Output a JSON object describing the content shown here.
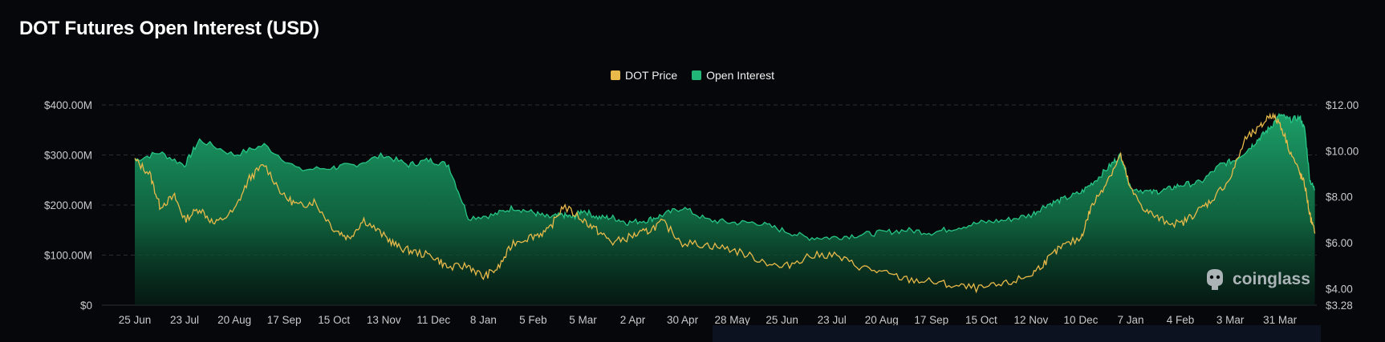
{
  "title": "DOT Futures Open Interest (USD)",
  "watermark": "coinglass",
  "colors": {
    "price": "#e9b949",
    "oi_line": "#27c585",
    "oi_top": "#1c9e68",
    "background": "#05070b"
  },
  "chart_data": {
    "type": "area",
    "title": "DOT Futures Open Interest (USD)",
    "legend_position": "top-center",
    "grid": true,
    "x_ticks": [
      "25 Jun",
      "23 Jul",
      "20 Aug",
      "17 Sep",
      "15 Oct",
      "13 Nov",
      "11 Dec",
      "8 Jan",
      "5 Feb",
      "5 Mar",
      "2 Apr",
      "30 Apr",
      "28 May",
      "25 Jun",
      "23 Jul",
      "20 Aug",
      "17 Sep",
      "15 Oct",
      "12 Nov",
      "10 Dec",
      "7 Jan",
      "4 Feb",
      "3 Mar",
      "31 Mar"
    ],
    "y_left": {
      "ticks": [
        "$0",
        "$100.00M",
        "$200.00M",
        "$300.00M",
        "$400.00M"
      ],
      "values": [
        0,
        100,
        200,
        300,
        400
      ],
      "range": [
        0,
        400
      ],
      "unit": "USD millions"
    },
    "y_right": {
      "ticks": [
        "$3.28",
        "$4.00",
        "$6.00",
        "$8.00",
        "$10.00",
        "$12.00"
      ],
      "values": [
        3.28,
        4,
        6,
        8,
        10,
        12
      ],
      "range": [
        3.28,
        12
      ],
      "unit": "USD"
    },
    "series": [
      {
        "name": "Open Interest",
        "axis": "left",
        "x": [
          0,
          0.5,
          1,
          1.3,
          2,
          2.6,
          3.3,
          4,
          4.4,
          5,
          5.5,
          5.9,
          6.3,
          6.7,
          7.2,
          7.6,
          8,
          8.3,
          8.6,
          8.8,
          9,
          9.3,
          9.6,
          9.9,
          10.3,
          10.6,
          11,
          11.5,
          12,
          12.5,
          13,
          13.5,
          14,
          14.5,
          15,
          15.5,
          16,
          16.5,
          17,
          17.5,
          18,
          18.3,
          18.6,
          19,
          19.3,
          19.6,
          19.8,
          20,
          20.4,
          20.7,
          21,
          21.4,
          21.8,
          22.1,
          22.4,
          22.6,
          22.8,
          23,
          23.2,
          23.4,
          23.5,
          23.6,
          23.7
        ],
        "values": [
          290,
          305,
          280,
          330,
          300,
          320,
          270,
          275,
          280,
          300,
          280,
          290,
          280,
          175,
          180,
          195,
          185,
          175,
          180,
          175,
          190,
          175,
          175,
          165,
          170,
          180,
          195,
          170,
          165,
          165,
          150,
          135,
          135,
          140,
          145,
          150,
          145,
          155,
          165,
          170,
          180,
          200,
          210,
          225,
          250,
          280,
          300,
          235,
          225,
          230,
          240,
          245,
          280,
          290,
          315,
          335,
          355,
          380,
          370,
          375,
          350,
          250,
          230
        ]
      },
      {
        "name": "DOT Price",
        "axis": "right",
        "x": [
          0,
          0.3,
          0.5,
          0.8,
          1,
          1.3,
          1.6,
          2,
          2.3,
          2.6,
          3,
          3.3,
          3.6,
          4,
          4.3,
          4.6,
          5,
          5.3,
          5.6,
          6,
          6.3,
          6.7,
          7,
          7.3,
          7.6,
          8,
          8.3,
          8.6,
          9,
          9.3,
          9.6,
          10,
          10.3,
          10.6,
          11,
          11.5,
          12,
          12.5,
          13,
          13.5,
          14,
          14.5,
          15,
          15.5,
          16,
          16.5,
          17,
          17.5,
          18,
          18.3,
          18.6,
          19,
          19.2,
          19.5,
          19.8,
          20,
          20.3,
          20.6,
          21,
          21.3,
          21.6,
          22,
          22.3,
          22.6,
          22.8,
          23,
          23.2,
          23.4,
          23.5,
          23.6,
          23.7
        ],
        "values": [
          9.6,
          9.0,
          7.6,
          8.0,
          7.0,
          7.5,
          6.8,
          7.4,
          8.8,
          9.4,
          8.0,
          7.6,
          7.8,
          6.6,
          6.2,
          7.0,
          6.3,
          5.8,
          5.6,
          5.4,
          4.9,
          5.0,
          4.5,
          4.9,
          6.0,
          6.3,
          6.5,
          7.6,
          7.0,
          6.5,
          6.0,
          6.3,
          6.5,
          6.9,
          6.0,
          5.9,
          5.7,
          5.3,
          4.9,
          5.4,
          5.5,
          5.0,
          4.7,
          4.4,
          4.3,
          4.1,
          4.0,
          4.2,
          4.6,
          5.2,
          5.8,
          6.2,
          7.5,
          8.6,
          9.8,
          8.3,
          7.4,
          7.0,
          6.8,
          7.3,
          7.8,
          8.8,
          10.5,
          11.0,
          11.6,
          11.2,
          10.0,
          9.0,
          8.5,
          7.2,
          6.4
        ]
      }
    ]
  }
}
